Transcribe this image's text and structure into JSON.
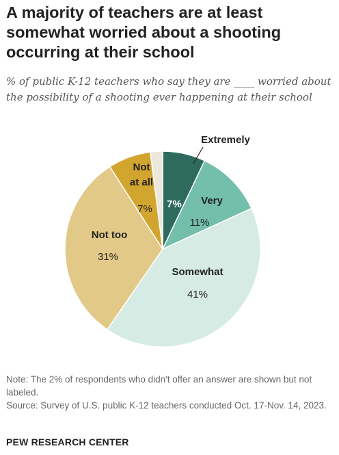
{
  "title": "A majority of teachers are at least somewhat worried about a shooting occurring at their school",
  "subtitle": "% of public K-12 teachers who say they are ____ worried about the possibility of a shooting ever happening at their school",
  "chart_data": {
    "type": "pie",
    "slices": [
      {
        "label": "Extremely",
        "value": 7,
        "value_label": "7%",
        "color": "#2e6b5e",
        "label_color": "#ffffff",
        "value_color": "#ffffff",
        "labeled": true
      },
      {
        "label": "Very",
        "value": 11,
        "value_label": "11%",
        "color": "#73bfac",
        "label_color": "#222222",
        "value_color": "#222222",
        "labeled": true
      },
      {
        "label": "Somewhat",
        "value": 41,
        "value_label": "41%",
        "color": "#d5ebe4",
        "label_color": "#222222",
        "value_color": "#222222",
        "labeled": true
      },
      {
        "label": "Not too",
        "value": 31,
        "value_label": "31%",
        "color": "#e2c987",
        "label_color": "#222222",
        "value_color": "#222222",
        "labeled": true
      },
      {
        "label": "Not at all",
        "label_lines": [
          "Not",
          "at all"
        ],
        "value": 7,
        "value_label": "7%",
        "color": "#d2a52f",
        "label_color": "#222222",
        "value_color": "#222222",
        "labeled": true
      },
      {
        "label": "",
        "value": 2,
        "value_label": "",
        "color": "#ede7dc",
        "labeled": false
      }
    ]
  },
  "note": "Note: The 2% of respondents who didn't offer an answer are shown but not labeled.",
  "source": "Source: Survey of U.S. public K-12 teachers conducted Oct. 17-Nov. 14, 2023.",
  "brand": "PEW RESEARCH CENTER"
}
